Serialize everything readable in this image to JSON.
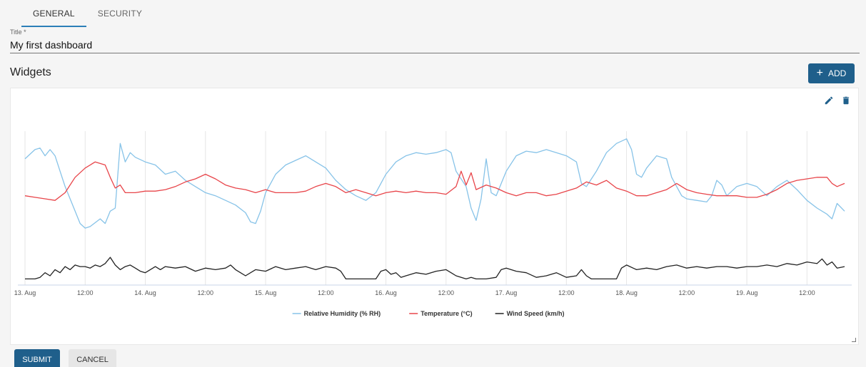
{
  "tabs": [
    {
      "label": "GENERAL",
      "active": true
    },
    {
      "label": "SECURITY",
      "active": false
    }
  ],
  "form": {
    "title_label": "Title *",
    "title_value": "My first dashboard"
  },
  "widgets": {
    "heading": "Widgets",
    "add_label": "ADD",
    "add_icon": "plus-icon",
    "edit_icon": "pencil-icon",
    "delete_icon": "trash-icon"
  },
  "footer": {
    "submit_label": "SUBMIT",
    "cancel_label": "CANCEL"
  },
  "colors": {
    "primary": "#1f5f8b",
    "tab_underline": "#2c7fb8",
    "humidity": "#87c3e8",
    "temperature": "#e8454a",
    "wind": "#222222"
  },
  "chart_data": {
    "type": "line",
    "title": "",
    "xlabel": "",
    "ylabel": "",
    "grid": true,
    "legend_placement": "bottom-center",
    "x_ticks": [
      "13. Aug",
      "12:00",
      "14. Aug",
      "12:00",
      "15. Aug",
      "12:00",
      "16. Aug",
      "12:00",
      "17. Aug",
      "12:00",
      "18. Aug",
      "12:00",
      "19. Aug",
      "12:00"
    ],
    "x_start_hour": 0,
    "x_end_hour": 163.5,
    "series": [
      {
        "name": "Relative Humidity (% RH)",
        "color": "#87c3e8",
        "points": [
          [
            0,
            0.82
          ],
          [
            2,
            0.88
          ],
          [
            3,
            0.89
          ],
          [
            4,
            0.84
          ],
          [
            5,
            0.88
          ],
          [
            6,
            0.84
          ],
          [
            7,
            0.74
          ],
          [
            8,
            0.64
          ],
          [
            9,
            0.56
          ],
          [
            10,
            0.48
          ],
          [
            11,
            0.4
          ],
          [
            12,
            0.37
          ],
          [
            13,
            0.38
          ],
          [
            15,
            0.43
          ],
          [
            16,
            0.4
          ],
          [
            17,
            0.48
          ],
          [
            18,
            0.5
          ],
          [
            19,
            0.92
          ],
          [
            20,
            0.8
          ],
          [
            21,
            0.86
          ],
          [
            22,
            0.83
          ],
          [
            24,
            0.8
          ],
          [
            26,
            0.78
          ],
          [
            28,
            0.72
          ],
          [
            30,
            0.74
          ],
          [
            32,
            0.68
          ],
          [
            34,
            0.64
          ],
          [
            36,
            0.6
          ],
          [
            38,
            0.58
          ],
          [
            40,
            0.55
          ],
          [
            42,
            0.52
          ],
          [
            44,
            0.47
          ],
          [
            45,
            0.41
          ],
          [
            46,
            0.4
          ],
          [
            47,
            0.48
          ],
          [
            48,
            0.6
          ],
          [
            50,
            0.72
          ],
          [
            52,
            0.78
          ],
          [
            54,
            0.81
          ],
          [
            56,
            0.84
          ],
          [
            58,
            0.8
          ],
          [
            60,
            0.76
          ],
          [
            62,
            0.68
          ],
          [
            64,
            0.62
          ],
          [
            66,
            0.58
          ],
          [
            68,
            0.55
          ],
          [
            70,
            0.6
          ],
          [
            72,
            0.72
          ],
          [
            74,
            0.8
          ],
          [
            76,
            0.84
          ],
          [
            78,
            0.86
          ],
          [
            80,
            0.85
          ],
          [
            82,
            0.86
          ],
          [
            84,
            0.88
          ],
          [
            85,
            0.86
          ],
          [
            86,
            0.74
          ],
          [
            88,
            0.64
          ],
          [
            89,
            0.5
          ],
          [
            90,
            0.42
          ],
          [
            91,
            0.56
          ],
          [
            92,
            0.82
          ],
          [
            93,
            0.6
          ],
          [
            94,
            0.58
          ],
          [
            96,
            0.74
          ],
          [
            98,
            0.84
          ],
          [
            100,
            0.87
          ],
          [
            102,
            0.86
          ],
          [
            104,
            0.88
          ],
          [
            106,
            0.86
          ],
          [
            108,
            0.84
          ],
          [
            110,
            0.8
          ],
          [
            111,
            0.66
          ],
          [
            112,
            0.64
          ],
          [
            114,
            0.74
          ],
          [
            116,
            0.86
          ],
          [
            118,
            0.92
          ],
          [
            120,
            0.95
          ],
          [
            121,
            0.88
          ],
          [
            122,
            0.72
          ],
          [
            123,
            0.7
          ],
          [
            124,
            0.76
          ],
          [
            126,
            0.84
          ],
          [
            128,
            0.82
          ],
          [
            129,
            0.7
          ],
          [
            130,
            0.64
          ],
          [
            131,
            0.58
          ],
          [
            132,
            0.56
          ],
          [
            134,
            0.55
          ],
          [
            136,
            0.54
          ],
          [
            137,
            0.58
          ],
          [
            138,
            0.68
          ],
          [
            139,
            0.65
          ],
          [
            140,
            0.58
          ],
          [
            142,
            0.64
          ],
          [
            144,
            0.66
          ],
          [
            146,
            0.64
          ],
          [
            148,
            0.58
          ],
          [
            150,
            0.64
          ],
          [
            152,
            0.68
          ],
          [
            154,
            0.62
          ],
          [
            156,
            0.55
          ],
          [
            158,
            0.5
          ],
          [
            160,
            0.46
          ],
          [
            161,
            0.43
          ],
          [
            162,
            0.53
          ],
          [
            163.5,
            0.48
          ]
        ]
      },
      {
        "name": "Temperature (°C)",
        "color": "#e8454a",
        "points": [
          [
            0,
            0.58
          ],
          [
            2,
            0.57
          ],
          [
            4,
            0.56
          ],
          [
            6,
            0.55
          ],
          [
            8,
            0.6
          ],
          [
            10,
            0.7
          ],
          [
            12,
            0.76
          ],
          [
            14,
            0.8
          ],
          [
            16,
            0.78
          ],
          [
            17,
            0.7
          ],
          [
            18,
            0.63
          ],
          [
            19,
            0.65
          ],
          [
            20,
            0.6
          ],
          [
            22,
            0.6
          ],
          [
            24,
            0.61
          ],
          [
            26,
            0.61
          ],
          [
            28,
            0.62
          ],
          [
            30,
            0.64
          ],
          [
            32,
            0.67
          ],
          [
            34,
            0.69
          ],
          [
            36,
            0.72
          ],
          [
            38,
            0.69
          ],
          [
            40,
            0.65
          ],
          [
            42,
            0.63
          ],
          [
            44,
            0.62
          ],
          [
            46,
            0.6
          ],
          [
            48,
            0.62
          ],
          [
            50,
            0.6
          ],
          [
            52,
            0.6
          ],
          [
            54,
            0.6
          ],
          [
            56,
            0.61
          ],
          [
            58,
            0.64
          ],
          [
            60,
            0.66
          ],
          [
            62,
            0.64
          ],
          [
            64,
            0.6
          ],
          [
            66,
            0.62
          ],
          [
            68,
            0.6
          ],
          [
            70,
            0.58
          ],
          [
            72,
            0.6
          ],
          [
            74,
            0.61
          ],
          [
            76,
            0.6
          ],
          [
            78,
            0.61
          ],
          [
            80,
            0.6
          ],
          [
            82,
            0.6
          ],
          [
            84,
            0.59
          ],
          [
            86,
            0.64
          ],
          [
            87,
            0.74
          ],
          [
            88,
            0.65
          ],
          [
            89,
            0.73
          ],
          [
            90,
            0.62
          ],
          [
            92,
            0.65
          ],
          [
            94,
            0.63
          ],
          [
            96,
            0.6
          ],
          [
            98,
            0.58
          ],
          [
            100,
            0.6
          ],
          [
            102,
            0.6
          ],
          [
            104,
            0.58
          ],
          [
            106,
            0.59
          ],
          [
            108,
            0.61
          ],
          [
            110,
            0.63
          ],
          [
            112,
            0.67
          ],
          [
            114,
            0.65
          ],
          [
            116,
            0.68
          ],
          [
            118,
            0.63
          ],
          [
            120,
            0.61
          ],
          [
            122,
            0.58
          ],
          [
            124,
            0.58
          ],
          [
            126,
            0.6
          ],
          [
            128,
            0.62
          ],
          [
            130,
            0.66
          ],
          [
            132,
            0.62
          ],
          [
            134,
            0.6
          ],
          [
            136,
            0.59
          ],
          [
            138,
            0.58
          ],
          [
            140,
            0.58
          ],
          [
            142,
            0.58
          ],
          [
            144,
            0.57
          ],
          [
            146,
            0.57
          ],
          [
            148,
            0.59
          ],
          [
            150,
            0.62
          ],
          [
            152,
            0.66
          ],
          [
            154,
            0.68
          ],
          [
            156,
            0.69
          ],
          [
            158,
            0.7
          ],
          [
            160,
            0.7
          ],
          [
            161,
            0.66
          ],
          [
            162,
            0.64
          ],
          [
            163.5,
            0.66
          ]
        ]
      },
      {
        "name": "Wind Speed (km/h)",
        "color": "#222222",
        "points": [
          [
            0,
            0.04
          ],
          [
            2,
            0.04
          ],
          [
            3,
            0.05
          ],
          [
            4,
            0.08
          ],
          [
            5,
            0.06
          ],
          [
            6,
            0.1
          ],
          [
            7,
            0.08
          ],
          [
            8,
            0.12
          ],
          [
            9,
            0.1
          ],
          [
            10,
            0.13
          ],
          [
            11,
            0.12
          ],
          [
            12,
            0.12
          ],
          [
            13,
            0.11
          ],
          [
            14,
            0.13
          ],
          [
            15,
            0.12
          ],
          [
            16,
            0.14
          ],
          [
            17,
            0.18
          ],
          [
            18,
            0.13
          ],
          [
            19,
            0.1
          ],
          [
            20,
            0.12
          ],
          [
            21,
            0.13
          ],
          [
            22,
            0.11
          ],
          [
            23,
            0.09
          ],
          [
            24,
            0.08
          ],
          [
            25,
            0.1
          ],
          [
            26,
            0.12
          ],
          [
            27,
            0.1
          ],
          [
            28,
            0.12
          ],
          [
            30,
            0.11
          ],
          [
            32,
            0.12
          ],
          [
            34,
            0.09
          ],
          [
            36,
            0.11
          ],
          [
            38,
            0.1
          ],
          [
            40,
            0.11
          ],
          [
            41,
            0.13
          ],
          [
            42,
            0.1
          ],
          [
            43,
            0.08
          ],
          [
            44,
            0.06
          ],
          [
            46,
            0.1
          ],
          [
            48,
            0.09
          ],
          [
            50,
            0.12
          ],
          [
            52,
            0.1
          ],
          [
            54,
            0.11
          ],
          [
            56,
            0.12
          ],
          [
            58,
            0.1
          ],
          [
            60,
            0.12
          ],
          [
            62,
            0.11
          ],
          [
            63,
            0.09
          ],
          [
            64,
            0.04
          ],
          [
            66,
            0.04
          ],
          [
            68,
            0.04
          ],
          [
            70,
            0.04
          ],
          [
            71,
            0.09
          ],
          [
            72,
            0.1
          ],
          [
            73,
            0.07
          ],
          [
            74,
            0.08
          ],
          [
            75,
            0.05
          ],
          [
            76,
            0.06
          ],
          [
            78,
            0.08
          ],
          [
            80,
            0.07
          ],
          [
            82,
            0.09
          ],
          [
            84,
            0.1
          ],
          [
            85,
            0.08
          ],
          [
            86,
            0.06
          ],
          [
            88,
            0.04
          ],
          [
            89,
            0.05
          ],
          [
            90,
            0.04
          ],
          [
            92,
            0.04
          ],
          [
            94,
            0.05
          ],
          [
            95,
            0.1
          ],
          [
            96,
            0.11
          ],
          [
            98,
            0.09
          ],
          [
            100,
            0.08
          ],
          [
            102,
            0.05
          ],
          [
            104,
            0.06
          ],
          [
            106,
            0.08
          ],
          [
            108,
            0.05
          ],
          [
            110,
            0.06
          ],
          [
            111,
            0.1
          ],
          [
            112,
            0.06
          ],
          [
            113,
            0.04
          ],
          [
            116,
            0.04
          ],
          [
            118,
            0.04
          ],
          [
            119,
            0.11
          ],
          [
            120,
            0.13
          ],
          [
            122,
            0.1
          ],
          [
            124,
            0.11
          ],
          [
            126,
            0.1
          ],
          [
            128,
            0.12
          ],
          [
            130,
            0.13
          ],
          [
            132,
            0.11
          ],
          [
            134,
            0.12
          ],
          [
            136,
            0.11
          ],
          [
            138,
            0.12
          ],
          [
            140,
            0.12
          ],
          [
            142,
            0.11
          ],
          [
            144,
            0.12
          ],
          [
            146,
            0.12
          ],
          [
            148,
            0.13
          ],
          [
            150,
            0.12
          ],
          [
            152,
            0.14
          ],
          [
            154,
            0.13
          ],
          [
            156,
            0.15
          ],
          [
            158,
            0.14
          ],
          [
            159,
            0.17
          ],
          [
            160,
            0.13
          ],
          [
            161,
            0.15
          ],
          [
            162,
            0.11
          ],
          [
            163.5,
            0.12
          ]
        ]
      }
    ]
  }
}
